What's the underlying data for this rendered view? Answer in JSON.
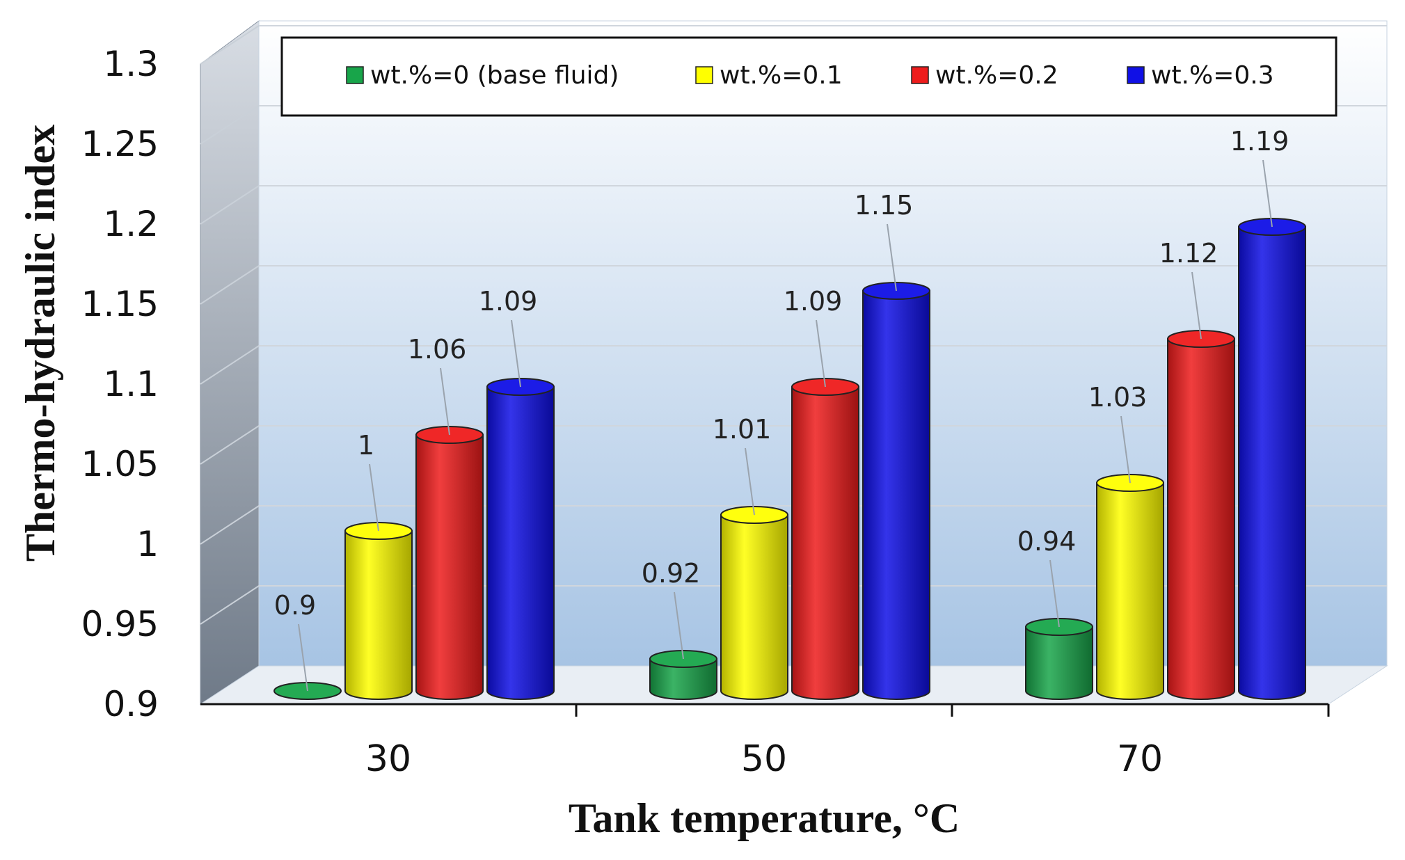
{
  "chart_data": {
    "type": "bar",
    "title": "",
    "xlabel": "Tank temperature, °C",
    "ylabel": "Thermo-hydraulic index",
    "categories": [
      "30",
      "50",
      "70"
    ],
    "series": [
      {
        "name": "wt.%=0 (base fluid)",
        "color": "#18a54a",
        "values": [
          0.9,
          0.92,
          0.94
        ],
        "labels": [
          "0.9",
          "0.92",
          "0.94"
        ]
      },
      {
        "name": "wt.%=0.1",
        "color": "#ffff00",
        "values": [
          1.0,
          1.01,
          1.03
        ],
        "labels": [
          "1",
          "1.01",
          "1.03"
        ]
      },
      {
        "name": "wt.%=0.2",
        "color": "#ee1c1c",
        "values": [
          1.06,
          1.09,
          1.12
        ],
        "labels": [
          "1.06",
          "1.09",
          "1.12"
        ]
      },
      {
        "name": "wt.%=0.3",
        "color": "#1010e6",
        "values": [
          1.09,
          1.15,
          1.19
        ],
        "labels": [
          "1.09",
          "1.15",
          "1.19"
        ]
      }
    ],
    "ylim": [
      0.9,
      1.3
    ],
    "yticks": [
      "0.9",
      "0.95",
      "1",
      "1.05",
      "1.1",
      "1.15",
      "1.2",
      "1.25",
      "1.3"
    ],
    "grid": true,
    "legend": "top"
  }
}
